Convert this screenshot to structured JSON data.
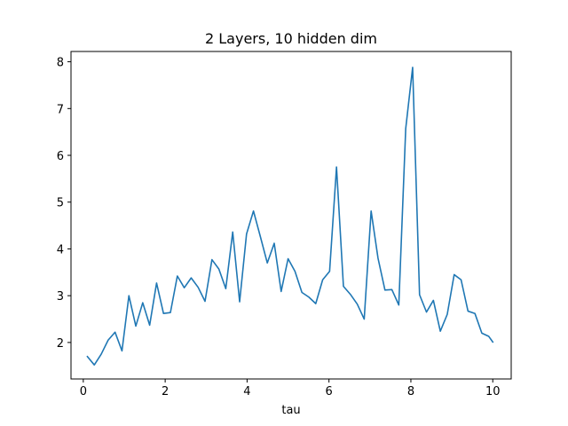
{
  "chart_data": {
    "type": "line",
    "title": "2 Layers, 10 hidden dim",
    "xlabel": "tau",
    "ylabel": "",
    "xlim": [
      -0.3,
      10.45
    ],
    "ylim": [
      1.22,
      8.22
    ],
    "xticks": [
      0,
      2,
      4,
      6,
      8,
      10
    ],
    "yticks": [
      2,
      3,
      4,
      5,
      6,
      7,
      8
    ],
    "grid": false,
    "legend": "none",
    "series": [
      {
        "color": "#1f77b4",
        "x": [
          0.1,
          0.269,
          0.438,
          0.607,
          0.776,
          0.945,
          1.114,
          1.283,
          1.452,
          1.621,
          1.79,
          1.959,
          2.128,
          2.297,
          2.466,
          2.635,
          2.804,
          2.973,
          3.142,
          3.311,
          3.48,
          3.649,
          3.818,
          3.987,
          4.156,
          4.325,
          4.494,
          4.663,
          4.832,
          5.001,
          5.17,
          5.339,
          5.508,
          5.677,
          5.846,
          6.015,
          6.184,
          6.353,
          6.522,
          6.691,
          6.86,
          7.029,
          7.198,
          7.367,
          7.536,
          7.705,
          7.874,
          8.043,
          8.212,
          8.381,
          8.55,
          8.719,
          8.888,
          9.057,
          9.226,
          9.395,
          9.564,
          9.733,
          9.902,
          10.0
        ],
        "values": [
          1.7,
          1.52,
          1.75,
          2.05,
          2.22,
          1.82,
          3.0,
          2.35,
          2.85,
          2.37,
          3.27,
          2.62,
          2.64,
          3.42,
          3.17,
          3.38,
          3.18,
          2.88,
          3.77,
          3.57,
          3.15,
          4.36,
          2.87,
          4.32,
          4.81,
          4.26,
          3.7,
          4.12,
          3.09,
          3.79,
          3.52,
          3.07,
          2.97,
          2.83,
          3.34,
          3.52,
          5.75,
          3.2,
          3.03,
          2.82,
          2.5,
          4.81,
          3.8,
          3.12,
          3.13,
          2.8,
          6.57,
          7.88,
          3.02,
          2.65,
          2.9,
          2.24,
          2.6,
          3.45,
          3.34,
          2.67,
          2.62,
          2.2,
          2.13,
          2.01
        ]
      }
    ]
  }
}
